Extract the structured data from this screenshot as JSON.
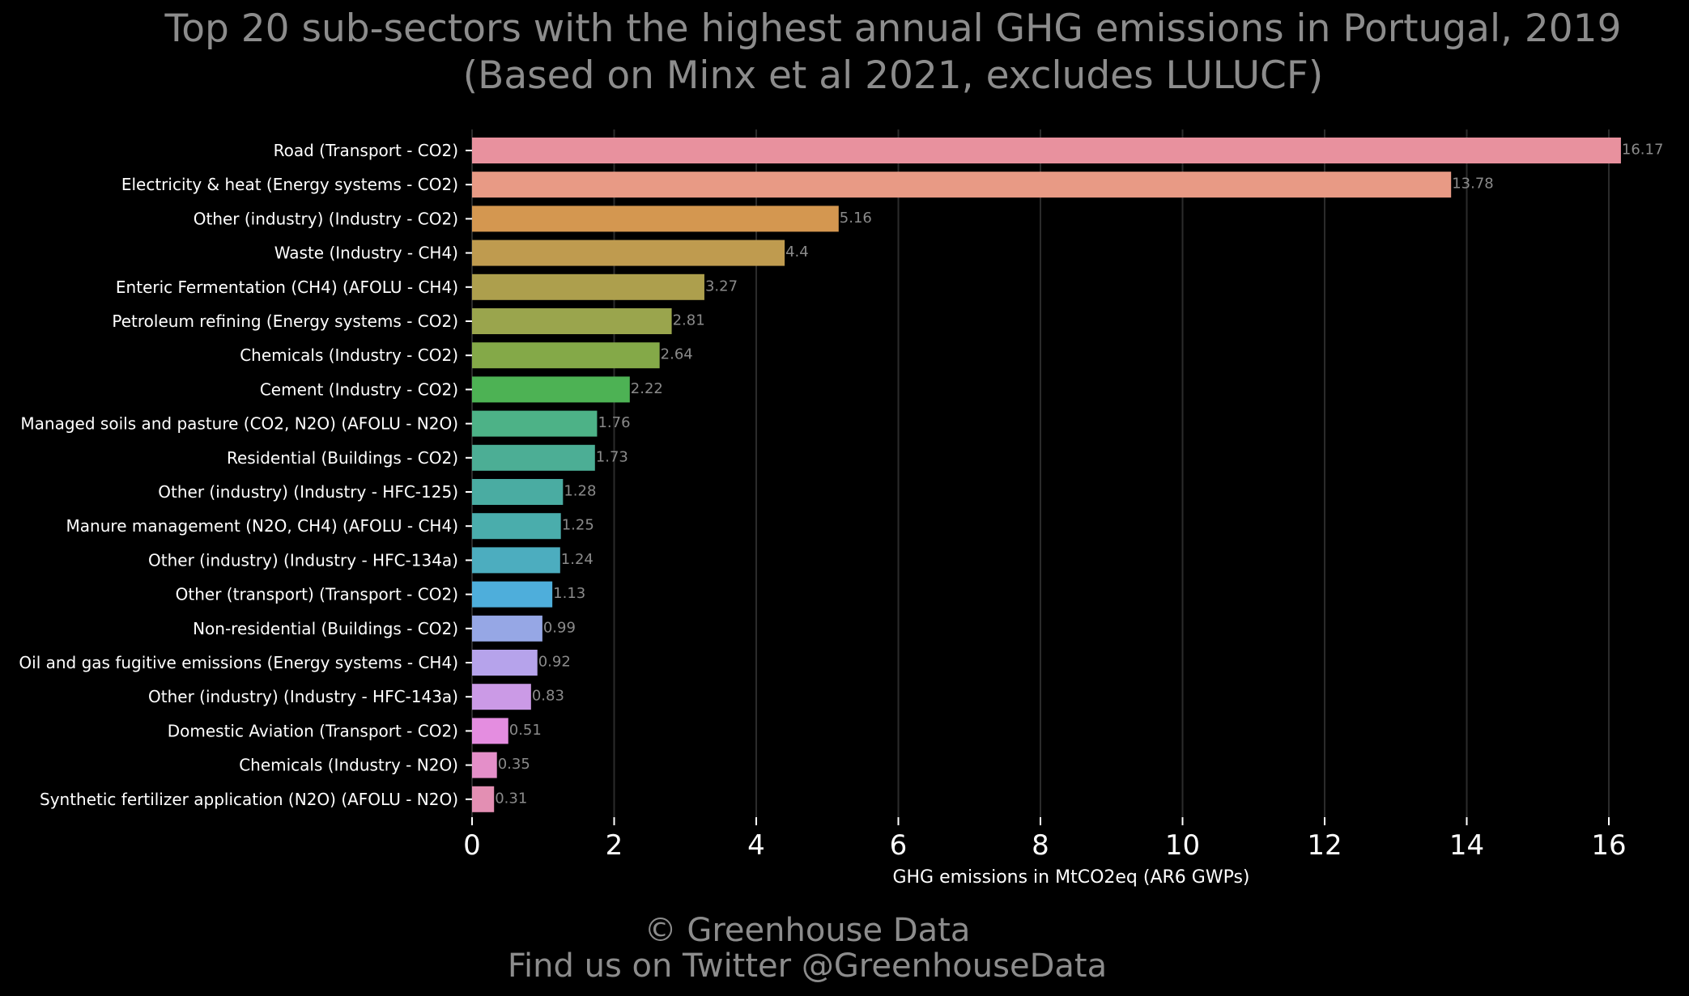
{
  "chart_data": {
    "type": "bar",
    "orientation": "horizontal",
    "title": "Top 20 sub-sectors with the highest annual GHG emissions in Portugal, 2019",
    "subtitle": "(Based on Minx et al 2021, excludes LULUCF)",
    "xlabel": "GHG emissions in MtCO2eq (AR6 GWPs)",
    "ylabel": "",
    "xlim": [
      0,
      16.5
    ],
    "xticks": [
      "0",
      "2",
      "4",
      "6",
      "8",
      "10",
      "12",
      "14",
      "16"
    ],
    "grid": "vertical",
    "legend": "none",
    "categories": [
      "Road (Transport - CO2)",
      "Electricity & heat (Energy systems - CO2)",
      "Other (industry) (Industry - CO2)",
      "Waste (Industry - CH4)",
      "Enteric Fermentation (CH4) (AFOLU - CH4)",
      "Petroleum refining (Energy systems - CO2)",
      "Chemicals (Industry - CO2)",
      "Cement (Industry - CO2)",
      "Managed soils and pasture (CO2, N2O) (AFOLU - N2O)",
      "Residential (Buildings - CO2)",
      "Other (industry) (Industry - HFC-125)",
      "Manure management (N2O, CH4) (AFOLU - CH4)",
      "Other (industry) (Industry - HFC-134a)",
      "Other (transport) (Transport - CO2)",
      "Non-residential (Buildings - CO2)",
      "Oil and gas fugitive emissions (Energy systems - CH4)",
      "Other (industry) (Industry - HFC-143a)",
      "Domestic Aviation (Transport - CO2)",
      "Chemicals (Industry - N2O)",
      "Synthetic fertilizer application (N2O) (AFOLU - N2O)"
    ],
    "values": [
      16.17,
      13.78,
      5.16,
      4.4,
      3.27,
      2.81,
      2.64,
      2.22,
      1.76,
      1.73,
      1.28,
      1.25,
      1.24,
      1.13,
      0.99,
      0.92,
      0.83,
      0.51,
      0.35,
      0.31
    ],
    "value_labels": [
      "16.17",
      "13.78",
      "5.16",
      "4.4",
      "3.27",
      "2.81",
      "2.64",
      "2.22",
      "1.76",
      "1.73",
      "1.28",
      "1.25",
      "1.24",
      "1.13",
      "0.99",
      "0.92",
      "0.83",
      "0.51",
      "0.35",
      "0.31"
    ],
    "colors": [
      "#e8919e",
      "#e89a85",
      "#d49750",
      "#bf9b4f",
      "#ad9f4d",
      "#9aa54d",
      "#84a948",
      "#4db254",
      "#4db287",
      "#4cae95",
      "#4aaca2",
      "#4aadac",
      "#4cadbf",
      "#4eaedb",
      "#96a7e5",
      "#b6a3eb",
      "#cb9ae6",
      "#e48de0",
      "#e48fc9",
      "#e38fb3"
    ]
  },
  "credits": {
    "line1": "© Greenhouse Data",
    "line2": "Find us on Twitter @GreenhouseData"
  }
}
